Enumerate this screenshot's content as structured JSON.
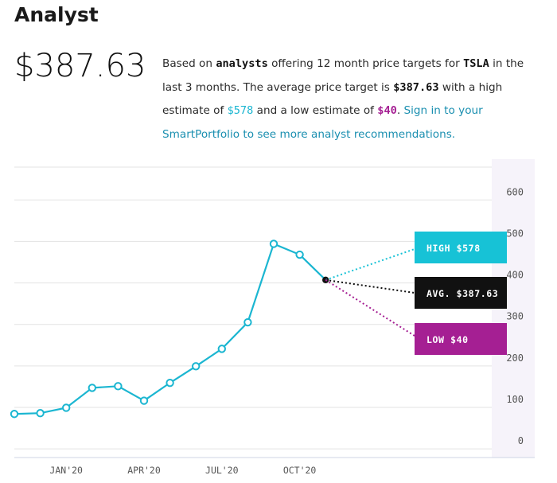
{
  "header": {
    "title": "Analyst"
  },
  "summary": {
    "price": "$387.63",
    "text_1": "Based on ",
    "text_analysts": "analysts",
    "text_2": " offering 12 month price targets for ",
    "text_ticker": "TSLA",
    "text_3": " in the last 3 months. The average price target is ",
    "text_avg": "$387.63",
    "text_4": " with a high estimate of ",
    "text_high": "$578",
    "text_5": " and a low estimate of ",
    "text_low": "$40",
    "text_6": ". ",
    "link": "Sign in to your SmartPortfolio to see more analyst recommendations."
  },
  "colors": {
    "line": "#1bb6d1",
    "high": "#17c2d6",
    "avg": "#111111",
    "low": "#a51f93"
  },
  "chart_data": {
    "type": "line",
    "x": [
      "2019-11",
      "2019-12",
      "2020-01",
      "2020-02",
      "2020-03",
      "2020-04",
      "2020-05",
      "2020-06",
      "2020-07",
      "2020-08",
      "2020-09",
      "2020-10",
      "2020-11"
    ],
    "series": [
      {
        "values": [
          65,
          67,
          80,
          128,
          132,
          97,
          140,
          180,
          222,
          286,
          475,
          449,
          388
        ]
      }
    ],
    "x_tick_labels": [
      "JAN'20",
      "APR'20",
      "JUL'20",
      "OCT'20"
    ],
    "y_ticks": [
      0,
      100,
      200,
      300,
      400,
      500,
      600
    ],
    "ylim": [
      -40,
      660
    ],
    "targets": {
      "high": {
        "label": "HIGH $578",
        "value": 578
      },
      "avg": {
        "label": "AVG. $387.63",
        "value": 387.63
      },
      "low": {
        "label": "LOW $40",
        "value": 40
      }
    },
    "grid": true
  }
}
